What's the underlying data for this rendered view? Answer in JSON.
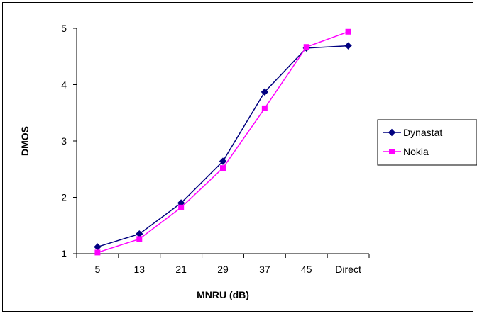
{
  "chart_data": {
    "type": "line",
    "categories": [
      "5",
      "13",
      "21",
      "29",
      "37",
      "45",
      "Direct"
    ],
    "series": [
      {
        "name": "Dynastat",
        "values": [
          1.12,
          1.35,
          1.9,
          2.64,
          3.87,
          4.65,
          4.69
        ],
        "color": "#000080",
        "marker": "diamond"
      },
      {
        "name": "Nokia",
        "values": [
          1.02,
          1.26,
          1.82,
          2.52,
          3.58,
          4.67,
          4.94
        ],
        "color": "#ff00ff",
        "marker": "square"
      }
    ],
    "xlabel": "MNRU (dB)",
    "ylabel": "DMOS",
    "ylim": [
      1,
      5
    ],
    "yticks": [
      "1",
      "2",
      "3",
      "4",
      "5"
    ],
    "grid": false,
    "legend_position": "right"
  }
}
